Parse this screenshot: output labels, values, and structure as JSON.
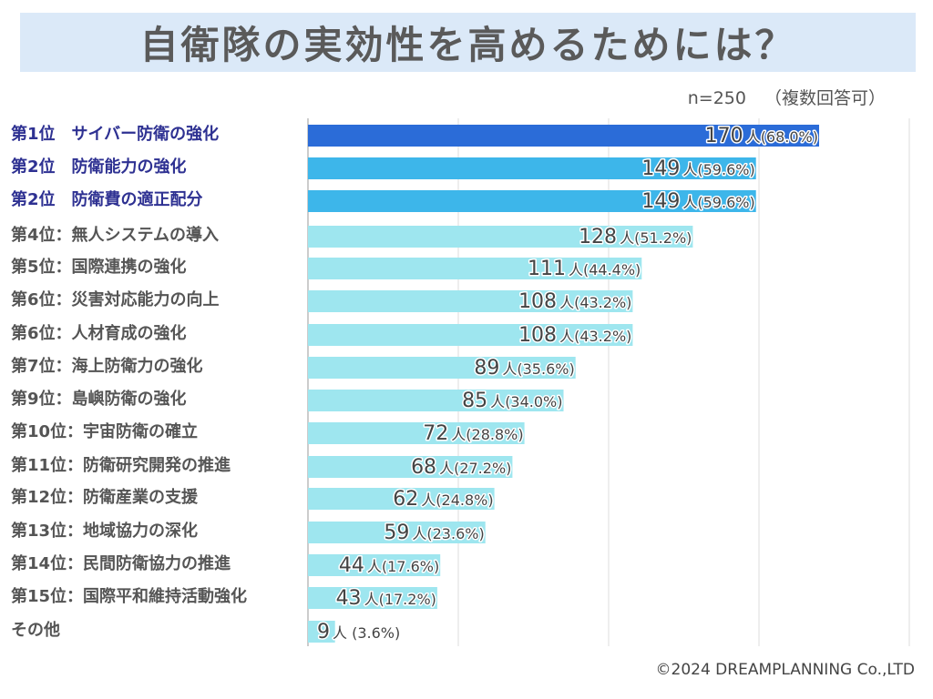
{
  "header": {
    "title": "自衛隊の実効性を高めるためには？",
    "sample_size": "n=250",
    "note": "（複数回答可）"
  },
  "footer": {
    "copyright": "©2024 DREAMPLANNING Co.,LTD"
  },
  "colors": {
    "rank1": "#2b6cd8",
    "rank2": "#3db6ea",
    "others": "#9ee6ef",
    "title_band": "#dbe9f8",
    "top_label": "#2e3192",
    "label": "#555555",
    "grid": "#dddddd"
  },
  "chart_data": {
    "type": "bar",
    "orientation": "horizontal",
    "title": "自衛隊の実効性を高めるためには？",
    "subtitle": "n=250（複数回答可）",
    "xlabel": "",
    "ylabel": "",
    "xlim": [
      0,
      200
    ],
    "grid": true,
    "grid_interval": 50,
    "unit": "人",
    "categories": [
      "第1位　サイバー防衛の強化",
      "第2位　防衛能力の強化",
      "第2位　防衛費の適正配分",
      "第4位：無人システムの導入",
      "第5位：国際連携の強化",
      "第6位：災害対応能力の向上",
      "第6位：人材育成の強化",
      "第7位：海上防衛力の強化",
      "第9位：島嶼防衛の強化",
      "第10位：宇宙防衛の確立",
      "第11位：防衛研究開発の推進",
      "第12位：防衛産業の支援",
      "第13位：地域協力の深化",
      "第14位：民間防衛協力の推進",
      "第15位：国際平和維持活動強化",
      "その他"
    ],
    "values": [
      170,
      149,
      149,
      128,
      111,
      108,
      108,
      89,
      85,
      72,
      68,
      62,
      59,
      44,
      43,
      9
    ],
    "percents": [
      "68.0%",
      "59.6%",
      "59.6%",
      "51.2%",
      "44.4%",
      "43.2%",
      "43.2%",
      "35.6%",
      "34.0%",
      "28.8%",
      "27.2%",
      "24.8%",
      "23.6%",
      "17.6%",
      "17.2%",
      "3.6%"
    ],
    "tiers": [
      "rank1",
      "rank2",
      "rank2",
      "others",
      "others",
      "others",
      "others",
      "others",
      "others",
      "others",
      "others",
      "others",
      "others",
      "others",
      "others",
      "others"
    ]
  }
}
